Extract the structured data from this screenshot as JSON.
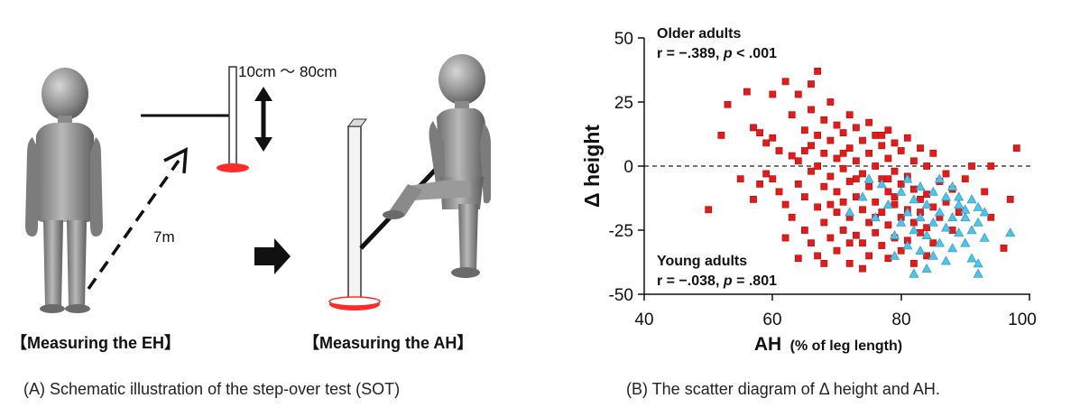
{
  "panel_a": {
    "range_label": "10cm 〜 80cm",
    "distance_label": "7m",
    "eh_label": "【Measuring the EH】",
    "ah_label": "【Measuring the AH】",
    "caption": "(A) Schematic illustration of the step-over test (SOT)",
    "icons": [
      "person-standing-icon",
      "person-stepping-icon",
      "height-arrow-icon",
      "right-arrow-icon",
      "dashed-path-arrow-icon"
    ]
  },
  "panel_b": {
    "caption": "(B) The scatter diagram of Δ height and AH.",
    "older_title": "Older adults",
    "older_stat_prefix": "r = −.389, ",
    "older_stat_p": "p",
    "older_stat_suffix": " < .001",
    "young_title": "Young adults",
    "young_stat_prefix": "r = −.038, ",
    "young_stat_p": "p",
    "young_stat_suffix": " = .801"
  },
  "chart_data": {
    "type": "scatter",
    "xlabel": "AH",
    "xlabel_unit": "(% of leg length)",
    "ylabel": "Δ height",
    "xlim": [
      40,
      100
    ],
    "ylim": [
      -50,
      50
    ],
    "xticks": [
      "40",
      "60",
      "80",
      "100"
    ],
    "yticks": [
      "50",
      "25",
      "0",
      "-25",
      "-50"
    ],
    "reference_line_y": 0,
    "series": [
      {
        "name": "Older adults",
        "marker": "square",
        "color": "#e01c1c",
        "points": [
          [
            50,
            -17
          ],
          [
            52,
            12
          ],
          [
            53,
            24
          ],
          [
            55,
            -5
          ],
          [
            56,
            29
          ],
          [
            57,
            15
          ],
          [
            58,
            13
          ],
          [
            59,
            9
          ],
          [
            58,
            -7
          ],
          [
            59,
            -3
          ],
          [
            60,
            28
          ],
          [
            60,
            11
          ],
          [
            61,
            6
          ],
          [
            61,
            -10
          ],
          [
            62,
            -15
          ],
          [
            62,
            33
          ],
          [
            63,
            4
          ],
          [
            63,
            20
          ],
          [
            63,
            -20
          ],
          [
            64,
            2
          ],
          [
            64,
            -7
          ],
          [
            64,
            28
          ],
          [
            65,
            14
          ],
          [
            65,
            6
          ],
          [
            65,
            -12
          ],
          [
            65,
            -25
          ],
          [
            66,
            8
          ],
          [
            66,
            -2
          ],
          [
            66,
            22
          ],
          [
            66,
            -30
          ],
          [
            66,
            32
          ],
          [
            67,
            37
          ],
          [
            67,
            0
          ],
          [
            67,
            12
          ],
          [
            67,
            -16
          ],
          [
            67,
            -35
          ],
          [
            68,
            18
          ],
          [
            68,
            5
          ],
          [
            68,
            -8
          ],
          [
            68,
            -22
          ],
          [
            69,
            25
          ],
          [
            69,
            10
          ],
          [
            69,
            -4
          ],
          [
            69,
            -28
          ],
          [
            70,
            16
          ],
          [
            70,
            3
          ],
          [
            70,
            -10
          ],
          [
            70,
            -18
          ],
          [
            70,
            -33
          ],
          [
            71,
            13
          ],
          [
            71,
            -1
          ],
          [
            71,
            -14
          ],
          [
            71,
            -25
          ],
          [
            72,
            20
          ],
          [
            72,
            7
          ],
          [
            72,
            -6
          ],
          [
            72,
            -20
          ],
          [
            72,
            -38
          ],
          [
            73,
            15
          ],
          [
            73,
            2
          ],
          [
            73,
            -12
          ],
          [
            73,
            -27
          ],
          [
            74,
            10
          ],
          [
            74,
            -3
          ],
          [
            74,
            -17
          ],
          [
            74,
            -30
          ],
          [
            75,
            17
          ],
          [
            75,
            5
          ],
          [
            75,
            -8
          ],
          [
            75,
            -22
          ],
          [
            75,
            -35
          ],
          [
            76,
            12
          ],
          [
            76,
            0
          ],
          [
            76,
            -14
          ],
          [
            76,
            -26
          ],
          [
            77,
            8
          ],
          [
            77,
            -5
          ],
          [
            77,
            -18
          ],
          [
            77,
            -31
          ],
          [
            78,
            14
          ],
          [
            78,
            3
          ],
          [
            78,
            -10
          ],
          [
            78,
            -23
          ],
          [
            78,
            -36
          ],
          [
            79,
            9
          ],
          [
            79,
            -2
          ],
          [
            79,
            -15
          ],
          [
            79,
            -28
          ],
          [
            80,
            6
          ],
          [
            80,
            -7
          ],
          [
            80,
            -20
          ],
          [
            80,
            -33
          ],
          [
            81,
            11
          ],
          [
            81,
            -4
          ],
          [
            81,
            -17
          ],
          [
            81,
            -29
          ],
          [
            82,
            2
          ],
          [
            82,
            -9
          ],
          [
            82,
            -22
          ],
          [
            82,
            -38
          ],
          [
            83,
            7
          ],
          [
            83,
            -13
          ],
          [
            83,
            -26
          ],
          [
            84,
            0
          ],
          [
            84,
            -11
          ],
          [
            84,
            -24
          ],
          [
            84,
            -35
          ],
          [
            85,
            5
          ],
          [
            85,
            -16
          ],
          [
            85,
            -30
          ],
          [
            86,
            -6
          ],
          [
            86,
            -20
          ],
          [
            87,
            -3
          ],
          [
            87,
            -14
          ],
          [
            88,
            -9
          ],
          [
            88,
            -25
          ],
          [
            89,
            -18
          ],
          [
            90,
            -5
          ],
          [
            91,
            0
          ],
          [
            93,
            -10
          ],
          [
            94,
            -20
          ],
          [
            94,
            0
          ],
          [
            97,
            -13
          ],
          [
            98,
            7
          ],
          [
            96,
            -32
          ],
          [
            69,
            -15
          ],
          [
            71,
            5
          ],
          [
            73,
            -5
          ],
          [
            76,
            -20
          ],
          [
            78,
            -5
          ],
          [
            68,
            -38
          ],
          [
            74,
            -40
          ],
          [
            62,
            -28
          ],
          [
            64,
            -36
          ],
          [
            60,
            -5
          ],
          [
            57,
            -13
          ],
          [
            72,
            -30
          ],
          [
            79,
            -12
          ],
          [
            83,
            -18
          ],
          [
            77,
            12
          ]
        ]
      },
      {
        "name": "Young adults",
        "marker": "triangle",
        "color": "#4fc3e8",
        "points": [
          [
            72,
            -18
          ],
          [
            74,
            -12
          ],
          [
            76,
            -20
          ],
          [
            77,
            -7
          ],
          [
            78,
            -15
          ],
          [
            79,
            -27
          ],
          [
            79,
            -35
          ],
          [
            80,
            -10
          ],
          [
            80,
            -22
          ],
          [
            81,
            -5
          ],
          [
            81,
            -18
          ],
          [
            81,
            -31
          ],
          [
            82,
            -13
          ],
          [
            82,
            -25
          ],
          [
            83,
            -8
          ],
          [
            83,
            -20
          ],
          [
            83,
            -33
          ],
          [
            84,
            -15
          ],
          [
            84,
            -27
          ],
          [
            84,
            -40
          ],
          [
            85,
            -10
          ],
          [
            85,
            -22
          ],
          [
            85,
            -35
          ],
          [
            86,
            -5
          ],
          [
            86,
            -18
          ],
          [
            86,
            -30
          ],
          [
            87,
            -12
          ],
          [
            87,
            -24
          ],
          [
            87,
            -37
          ],
          [
            88,
            -8
          ],
          [
            88,
            -20
          ],
          [
            88,
            -32
          ],
          [
            89,
            -15
          ],
          [
            89,
            -26
          ],
          [
            89,
            -12
          ],
          [
            90,
            -20
          ],
          [
            90,
            -30
          ],
          [
            90,
            -17
          ],
          [
            91,
            -13
          ],
          [
            91,
            -25
          ],
          [
            91,
            -36
          ],
          [
            92,
            -22
          ],
          [
            92,
            -16
          ],
          [
            92,
            -38
          ],
          [
            92,
            -42
          ],
          [
            93,
            -18
          ],
          [
            93,
            -28
          ],
          [
            97,
            -26
          ],
          [
            75,
            -5
          ],
          [
            82,
            -42
          ]
        ]
      }
    ]
  }
}
